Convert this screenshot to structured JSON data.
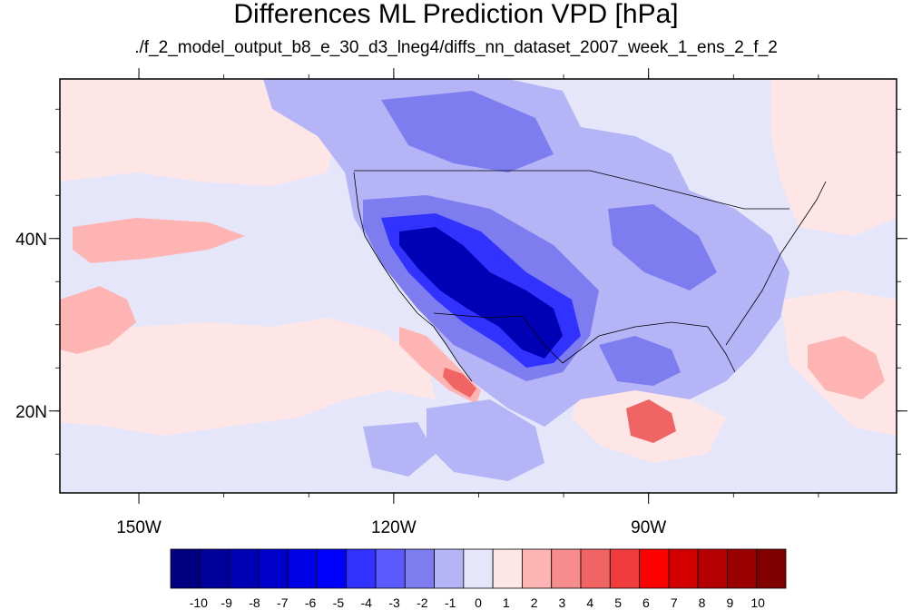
{
  "title": "Differences ML Prediction VPD [hPa]",
  "subtitle": "./f_2_model_output_b8_e_30_d3_lneg4/diffs_nn_dataset_2007_week_1_ens_2_f_2",
  "map": {
    "lon_range": [
      -159.3,
      -60.8
    ],
    "lat_range": [
      10.5,
      58.5
    ],
    "x_ticks": [
      {
        "value": -150,
        "label": "150W"
      },
      {
        "value": -120,
        "label": "120W"
      },
      {
        "value": -90,
        "label": "90W"
      }
    ],
    "y_ticks": [
      {
        "value": 40,
        "label": "40N"
      },
      {
        "value": 20,
        "label": "20N"
      }
    ],
    "fill_colors": {
      "background": "#e6e6fa",
      "weak_negative": "#b4b4f7",
      "moderate_negative": "#7d7df0",
      "strong_negative": "#3232ff",
      "very_strong_negative": "#0000b4",
      "weak_positive": "#ffe6e6",
      "moderate_positive": "#ffb4b4",
      "strong_positive": "#f06464"
    }
  },
  "colorbar": {
    "labels": [
      "-10",
      "-9",
      "-8",
      "-7",
      "-6",
      "-5",
      "-4",
      "-3",
      "-2",
      "-1",
      "0",
      "1",
      "2",
      "3",
      "4",
      "5",
      "6",
      "7",
      "8",
      "9",
      "10"
    ],
    "colors": [
      "#000080",
      "#00009b",
      "#0000b4",
      "#0000cd",
      "#0000e6",
      "#0000ff",
      "#3232ff",
      "#5a5aff",
      "#7d7df0",
      "#b4b4f7",
      "#e6e6fa",
      "#ffe6e6",
      "#ffb4b4",
      "#f78c8c",
      "#f06464",
      "#f03c3c",
      "#ff0000",
      "#d20000",
      "#b40000",
      "#9b0000",
      "#800000"
    ]
  }
}
